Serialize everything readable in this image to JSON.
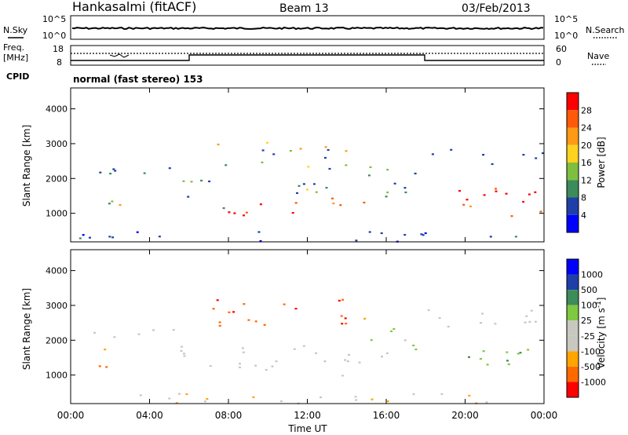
{
  "header": {
    "station": "Hankasalmi (fitACF)",
    "beam": "Beam 13",
    "date": "03/Feb/2013"
  },
  "top_panels": {
    "nsky_label": "N.Sky",
    "nsearch_label": "N.Search",
    "noise_tick_high": "10^5",
    "noise_tick_low": "10^0",
    "freq_label_1": "Freq.",
    "freq_label_2": "[MHz]",
    "freq_ticks": [
      "18",
      "8"
    ],
    "nave_label": "Nave",
    "nave_ticks": [
      "60",
      "0"
    ],
    "cpid_label": "CPID",
    "cpid_text": "normal (fast stereo) 153"
  },
  "colors": {
    "power_scale": [
      "#0000ff",
      "#1f3fa8",
      "#3b8c5a",
      "#7fbf3f",
      "#ffd21f",
      "#ff9a14",
      "#ff5a0a",
      "#ff0000"
    ],
    "velocity_scale": [
      "#ff0000",
      "#ff6a00",
      "#ffa500",
      "#c8c8c0",
      "#c8c8c0",
      "#7fc83f",
      "#3d8c5a",
      "#1f3fa8",
      "#0000ff"
    ]
  },
  "chart_data": [
    {
      "type": "heatmap",
      "title": "Power",
      "ylabel": "Slant Range [km]",
      "colorbar_label": "Power [dB]",
      "colorbar_ticks": [
        "28",
        "24",
        "20",
        "16",
        "12",
        "8",
        "4"
      ],
      "ylim": [
        180,
        4600
      ],
      "y_ticks": [
        "4000",
        "3000",
        "2000",
        "1000"
      ],
      "x_ticks": [
        "00:00",
        "04:00",
        "08:00",
        "12:00",
        "16:00",
        "20:00",
        "00:00"
      ],
      "xlabel": "Time UT"
    },
    {
      "type": "heatmap",
      "title": "Velocity",
      "ylabel": "Slant Range [km]",
      "colorbar_label": "Velocity [m s^-1]",
      "colorbar_ticks": [
        "1000",
        "500",
        "100",
        "25",
        "-25",
        "-100",
        "-500",
        "-1000"
      ],
      "ylim": [
        180,
        4600
      ],
      "y_ticks": [
        "4000",
        "3000",
        "2000",
        "1000"
      ],
      "x_ticks": [
        "00:00",
        "04:00",
        "08:00",
        "12:00",
        "16:00",
        "20:00",
        "00:00"
      ],
      "xlabel": "Time UT"
    }
  ]
}
